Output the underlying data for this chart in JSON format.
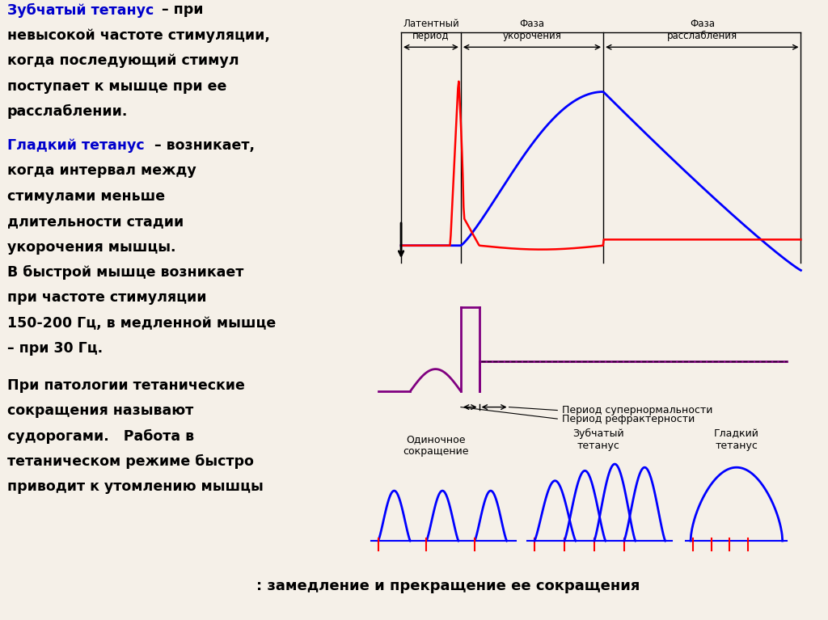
{
  "bg_color": "#f5f0e8",
  "panel1": {
    "lat_label": "Латентный\nпериод",
    "uk_label": "Фаза\nукорочения",
    "ras_label": "Фаза\nрасслабления"
  },
  "panel2": {
    "supernorm": "Период супернормальности",
    "refract": "Период рефрактерности"
  },
  "panel3": {
    "single": "Одиночное\nсокращение",
    "zubchat": "Зубчатый\nтетанус",
    "gladkiy": "Гладкий\nтетанус"
  },
  "bottom_text": ": замедление и прекращение ее сокращения"
}
